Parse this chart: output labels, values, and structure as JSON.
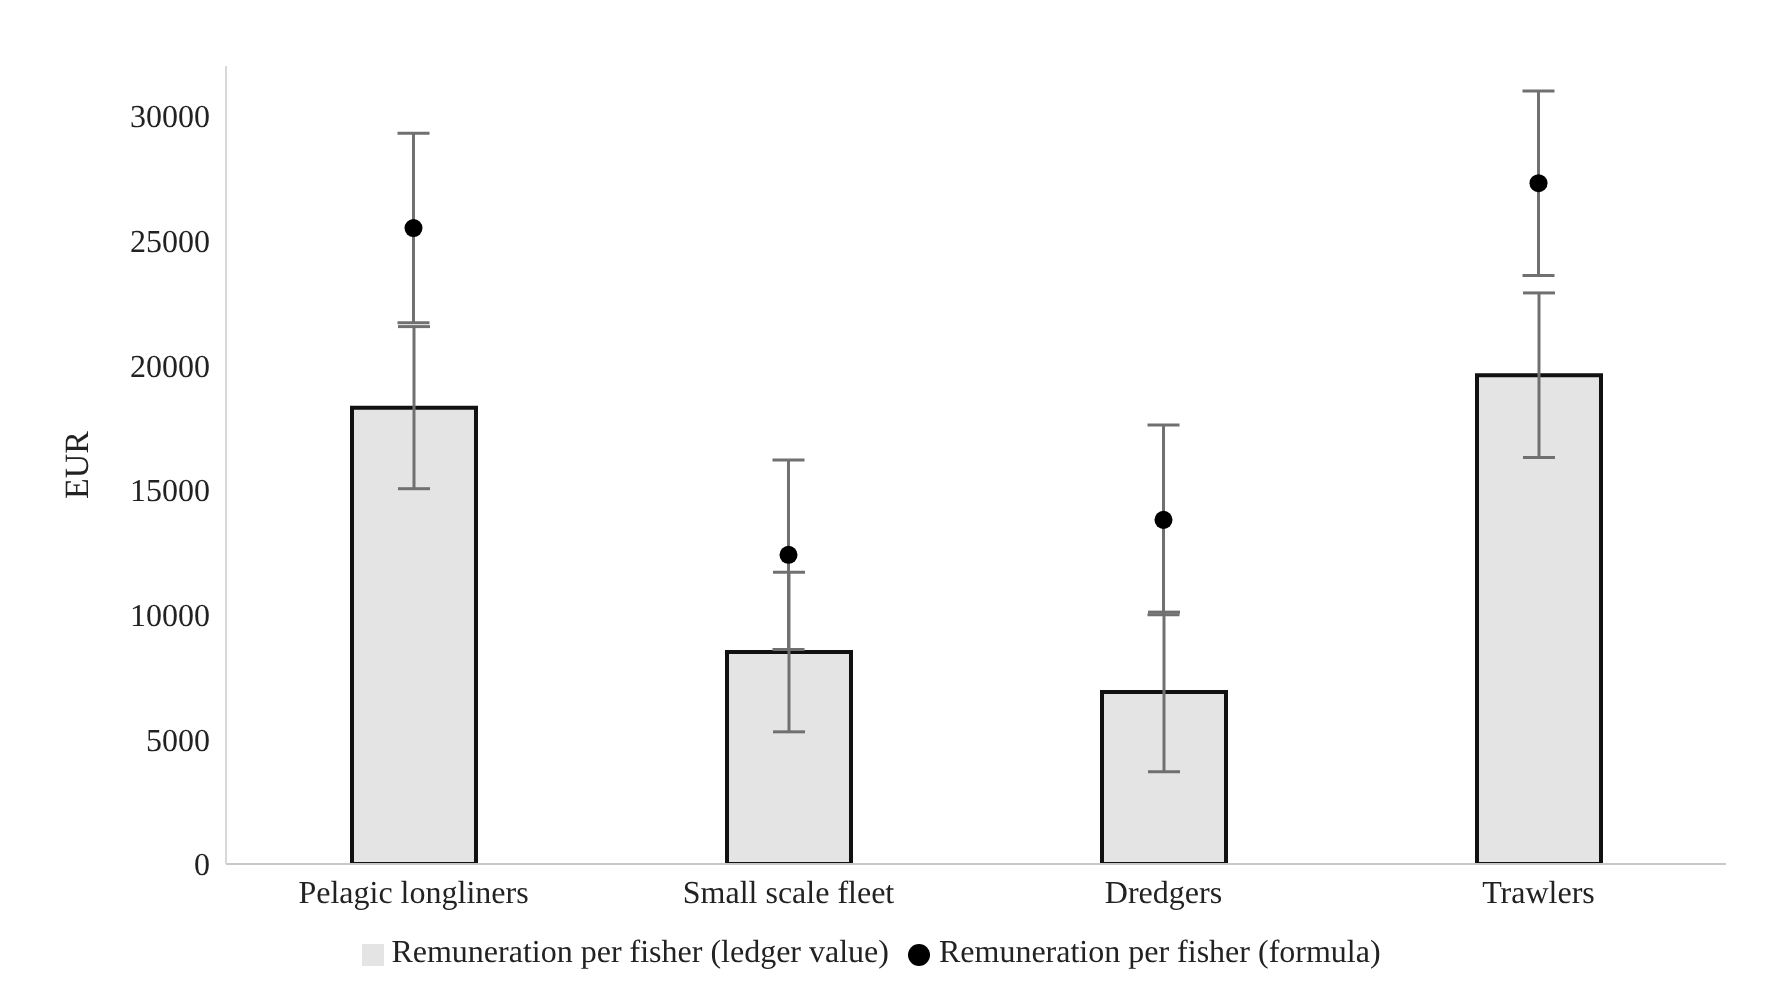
{
  "chart_data": {
    "type": "bar",
    "ylabel": "EUR",
    "categories": [
      "Pelagic longliners",
      "Small scale fleet",
      "Dredgers",
      "Trawlers"
    ],
    "series": [
      {
        "name": "Remuneration per fisher (ledger value)",
        "color": "#e4e4e4",
        "values": [
          18300,
          8500,
          6900,
          19600
        ],
        "errors": [
          3250,
          3200,
          3200,
          3300
        ]
      },
      {
        "name": "Remuneration per fisher (formula)",
        "type": "scatter",
        "color": "#000000",
        "values": [
          25500,
          12400,
          13800,
          27300
        ],
        "errors": [
          3800,
          3800,
          3800,
          3700
        ]
      }
    ],
    "ylim": [
      0,
      32000
    ],
    "yticks": [
      0,
      5000,
      10000,
      15000,
      20000,
      25000,
      30000
    ],
    "grid": false,
    "legend": "bottom",
    "marker": "circle"
  }
}
